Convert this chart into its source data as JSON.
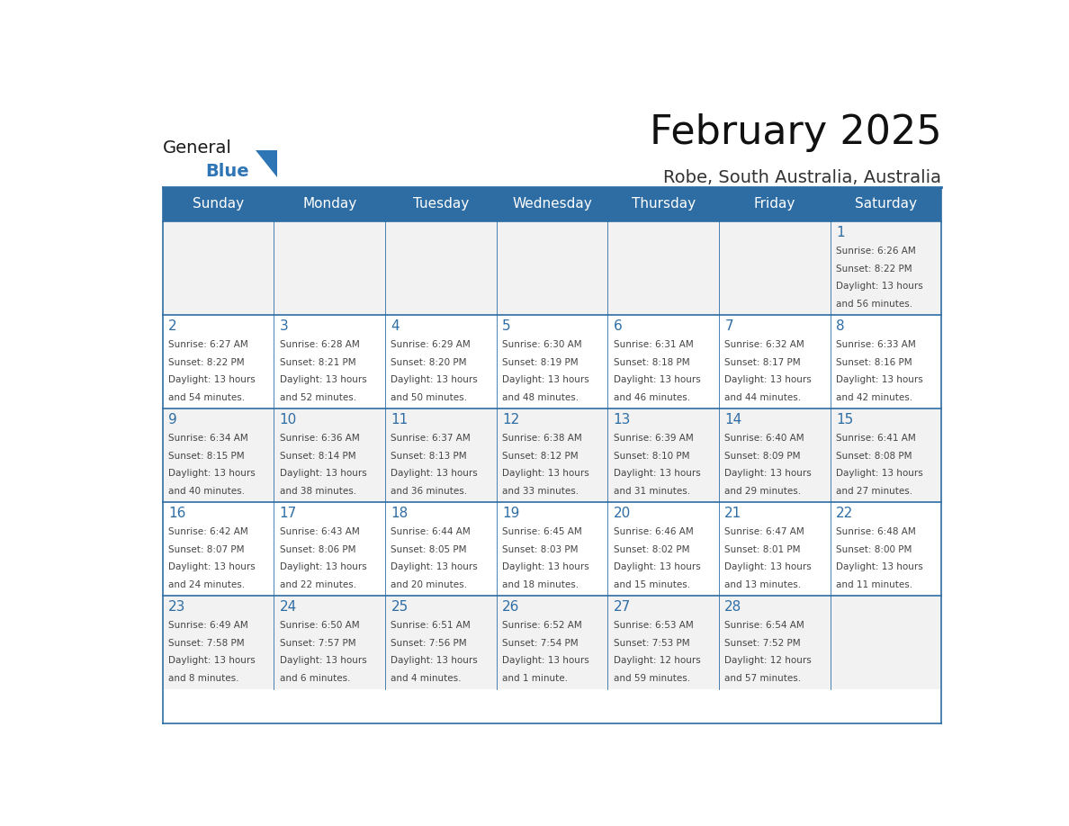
{
  "title": "February 2025",
  "subtitle": "Robe, South Australia, Australia",
  "days_of_week": [
    "Sunday",
    "Monday",
    "Tuesday",
    "Wednesday",
    "Thursday",
    "Friday",
    "Saturday"
  ],
  "header_bg": "#2E6DA4",
  "header_text": "#FFFFFF",
  "cell_bg_even": "#F2F2F2",
  "cell_bg_odd": "#FFFFFF",
  "border_color": "#2E6DA4",
  "day_num_color": "#2E6DA4",
  "text_color": "#444444",
  "logo_general_color": "#1a1a1a",
  "logo_blue_color": "#2E75B6",
  "weeks": [
    [
      null,
      null,
      null,
      null,
      null,
      null,
      1
    ],
    [
      2,
      3,
      4,
      5,
      6,
      7,
      8
    ],
    [
      9,
      10,
      11,
      12,
      13,
      14,
      15
    ],
    [
      16,
      17,
      18,
      19,
      20,
      21,
      22
    ],
    [
      23,
      24,
      25,
      26,
      27,
      28,
      null
    ]
  ],
  "cell_data": {
    "1": {
      "sunrise": "6:26 AM",
      "sunset": "8:22 PM",
      "daylight_hours": "13 hours",
      "daylight_mins": "56 minutes"
    },
    "2": {
      "sunrise": "6:27 AM",
      "sunset": "8:22 PM",
      "daylight_hours": "13 hours",
      "daylight_mins": "54 minutes"
    },
    "3": {
      "sunrise": "6:28 AM",
      "sunset": "8:21 PM",
      "daylight_hours": "13 hours",
      "daylight_mins": "52 minutes"
    },
    "4": {
      "sunrise": "6:29 AM",
      "sunset": "8:20 PM",
      "daylight_hours": "13 hours",
      "daylight_mins": "50 minutes"
    },
    "5": {
      "sunrise": "6:30 AM",
      "sunset": "8:19 PM",
      "daylight_hours": "13 hours",
      "daylight_mins": "48 minutes"
    },
    "6": {
      "sunrise": "6:31 AM",
      "sunset": "8:18 PM",
      "daylight_hours": "13 hours",
      "daylight_mins": "46 minutes"
    },
    "7": {
      "sunrise": "6:32 AM",
      "sunset": "8:17 PM",
      "daylight_hours": "13 hours",
      "daylight_mins": "44 minutes"
    },
    "8": {
      "sunrise": "6:33 AM",
      "sunset": "8:16 PM",
      "daylight_hours": "13 hours",
      "daylight_mins": "42 minutes"
    },
    "9": {
      "sunrise": "6:34 AM",
      "sunset": "8:15 PM",
      "daylight_hours": "13 hours",
      "daylight_mins": "40 minutes"
    },
    "10": {
      "sunrise": "6:36 AM",
      "sunset": "8:14 PM",
      "daylight_hours": "13 hours",
      "daylight_mins": "38 minutes"
    },
    "11": {
      "sunrise": "6:37 AM",
      "sunset": "8:13 PM",
      "daylight_hours": "13 hours",
      "daylight_mins": "36 minutes"
    },
    "12": {
      "sunrise": "6:38 AM",
      "sunset": "8:12 PM",
      "daylight_hours": "13 hours",
      "daylight_mins": "33 minutes"
    },
    "13": {
      "sunrise": "6:39 AM",
      "sunset": "8:10 PM",
      "daylight_hours": "13 hours",
      "daylight_mins": "31 minutes"
    },
    "14": {
      "sunrise": "6:40 AM",
      "sunset": "8:09 PM",
      "daylight_hours": "13 hours",
      "daylight_mins": "29 minutes"
    },
    "15": {
      "sunrise": "6:41 AM",
      "sunset": "8:08 PM",
      "daylight_hours": "13 hours",
      "daylight_mins": "27 minutes"
    },
    "16": {
      "sunrise": "6:42 AM",
      "sunset": "8:07 PM",
      "daylight_hours": "13 hours",
      "daylight_mins": "24 minutes"
    },
    "17": {
      "sunrise": "6:43 AM",
      "sunset": "8:06 PM",
      "daylight_hours": "13 hours",
      "daylight_mins": "22 minutes"
    },
    "18": {
      "sunrise": "6:44 AM",
      "sunset": "8:05 PM",
      "daylight_hours": "13 hours",
      "daylight_mins": "20 minutes"
    },
    "19": {
      "sunrise": "6:45 AM",
      "sunset": "8:03 PM",
      "daylight_hours": "13 hours",
      "daylight_mins": "18 minutes"
    },
    "20": {
      "sunrise": "6:46 AM",
      "sunset": "8:02 PM",
      "daylight_hours": "13 hours",
      "daylight_mins": "15 minutes"
    },
    "21": {
      "sunrise": "6:47 AM",
      "sunset": "8:01 PM",
      "daylight_hours": "13 hours",
      "daylight_mins": "13 minutes"
    },
    "22": {
      "sunrise": "6:48 AM",
      "sunset": "8:00 PM",
      "daylight_hours": "13 hours",
      "daylight_mins": "11 minutes"
    },
    "23": {
      "sunrise": "6:49 AM",
      "sunset": "7:58 PM",
      "daylight_hours": "13 hours",
      "daylight_mins": "8 minutes"
    },
    "24": {
      "sunrise": "6:50 AM",
      "sunset": "7:57 PM",
      "daylight_hours": "13 hours",
      "daylight_mins": "6 minutes"
    },
    "25": {
      "sunrise": "6:51 AM",
      "sunset": "7:56 PM",
      "daylight_hours": "13 hours",
      "daylight_mins": "4 minutes"
    },
    "26": {
      "sunrise": "6:52 AM",
      "sunset": "7:54 PM",
      "daylight_hours": "13 hours",
      "daylight_mins": "1 minute"
    },
    "27": {
      "sunrise": "6:53 AM",
      "sunset": "7:53 PM",
      "daylight_hours": "12 hours",
      "daylight_mins": "59 minutes"
    },
    "28": {
      "sunrise": "6:54 AM",
      "sunset": "7:52 PM",
      "daylight_hours": "12 hours",
      "daylight_mins": "57 minutes"
    }
  }
}
